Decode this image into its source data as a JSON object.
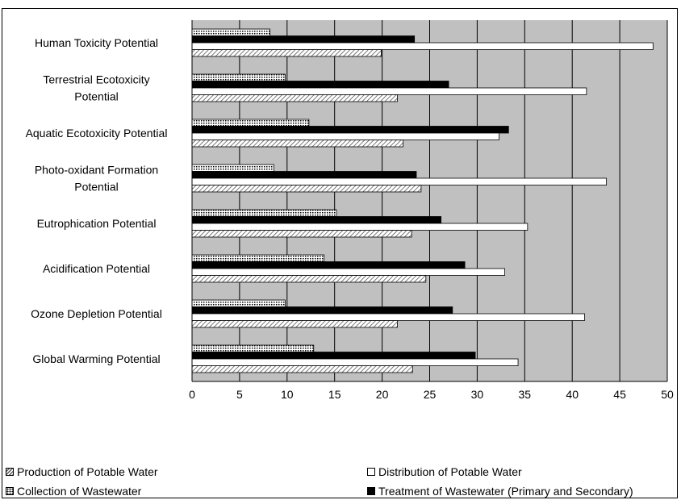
{
  "chart_data": {
    "type": "bar",
    "orientation": "horizontal",
    "categories": [
      "Human Toxicity Potential",
      "Terrestrial Ecotoxicity Potential",
      "Aquatic Ecotoxicity Potential",
      "Photo-oxidant Formation Potential",
      "Eutrophication Potential",
      "Acidification Potential",
      "Ozone Depletion Potential",
      "Global Warming Potential"
    ],
    "category_lines": [
      [
        "Human Toxicity Potential"
      ],
      [
        "Terrestrial Ecotoxicity",
        "Potential"
      ],
      [
        "Aquatic Ecotoxicity Potential"
      ],
      [
        "Photo-oxidant Formation",
        "Potential"
      ],
      [
        "Eutrophication Potential"
      ],
      [
        "Acidification Potential"
      ],
      [
        "Ozone Depletion Potential"
      ],
      [
        "Global Warming Potential"
      ]
    ],
    "series": [
      {
        "name": "Collection of Wastewater",
        "pattern": "dotted",
        "values": [
          8.2,
          9.8,
          12.3,
          8.6,
          15.2,
          13.9,
          9.8,
          12.8
        ]
      },
      {
        "name": "Treatment of Wastewater (Primary and Secondary)",
        "pattern": "solid-black",
        "values": [
          23.4,
          27.0,
          33.3,
          23.6,
          26.2,
          28.7,
          27.4,
          29.8
        ]
      },
      {
        "name": "Distribution of Potable  Water",
        "pattern": "white",
        "values": [
          48.5,
          41.5,
          32.3,
          43.6,
          35.3,
          32.9,
          41.3,
          34.3
        ]
      },
      {
        "name": "Production of Potable Water",
        "pattern": "diagonal-hatch",
        "values": [
          19.9,
          21.6,
          22.2,
          24.1,
          23.1,
          24.6,
          21.6,
          23.2
        ]
      }
    ],
    "xlim": [
      0,
      50
    ],
    "xticks": [
      "0",
      "5",
      "10",
      "15",
      "20",
      "25",
      "30",
      "35",
      "40",
      "45",
      "50"
    ],
    "grid": true,
    "plot_background": "#C0C0C0",
    "legend": {
      "position": "bottom",
      "items": [
        {
          "label": "Production of Potable Water",
          "pattern": "diagonal-hatch"
        },
        {
          "label": "Distribution of Potable  Water",
          "pattern": "white"
        },
        {
          "label": "Collection of Wastewater",
          "pattern": "dotted"
        },
        {
          "label": "Treatment of Wastewater (Primary and Secondary)",
          "pattern": "solid-black"
        }
      ]
    }
  }
}
